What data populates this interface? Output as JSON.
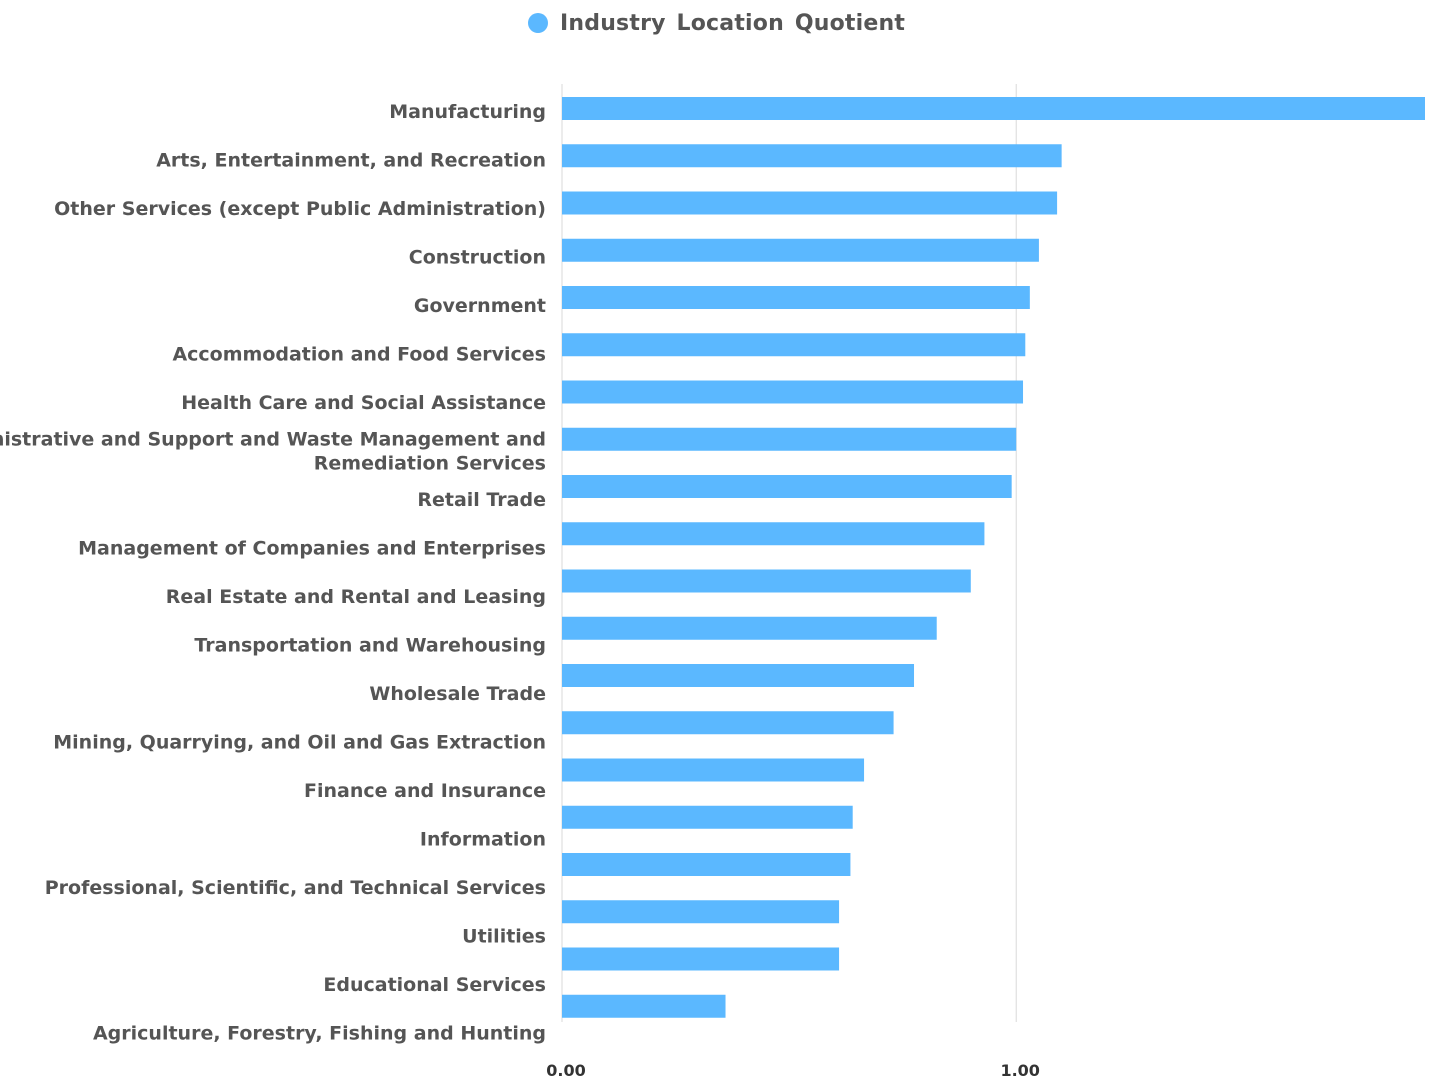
{
  "chart_data": {
    "type": "bar",
    "orientation": "horizontal",
    "legend": {
      "position": "top-center",
      "label": "Industry Location Quotient"
    },
    "categories": [
      "Manufacturing",
      "Arts, Entertainment, and Recreation",
      "Other Services (except Public Administration)",
      "Construction",
      "Government",
      "Accommodation and Food Services",
      "Health Care and Social Assistance",
      "Administrative and Support and Waste Management and Remediation Services",
      "Retail Trade",
      "Management of Companies and Enterprises",
      "Real Estate and Rental and Leasing",
      "Transportation and Warehousing",
      "Wholesale Trade",
      "Mining, Quarrying, and Oil and Gas Extraction",
      "Finance and Insurance",
      "Information",
      "Professional, Scientific, and Technical Services",
      "Utilities",
      "Educational Services",
      "Agriculture, Forestry, Fishing and Hunting"
    ],
    "series": [
      {
        "name": "Industry Location Quotient",
        "color": "#5BB8FF",
        "values": [
          1.9,
          1.1,
          1.09,
          1.05,
          1.03,
          1.02,
          1.015,
          1.0,
          0.99,
          0.93,
          0.9,
          0.825,
          0.775,
          0.73,
          0.665,
          0.64,
          0.635,
          0.61,
          0.61,
          0.36
        ]
      }
    ],
    "xlim": [
      0,
      1.9
    ],
    "x_ticks": [
      0,
      1
    ],
    "x_tick_labels": [
      "0.00",
      "1.00"
    ],
    "grid": {
      "vertical": true,
      "horizontal": false
    },
    "xlabel": "",
    "ylabel": ""
  }
}
